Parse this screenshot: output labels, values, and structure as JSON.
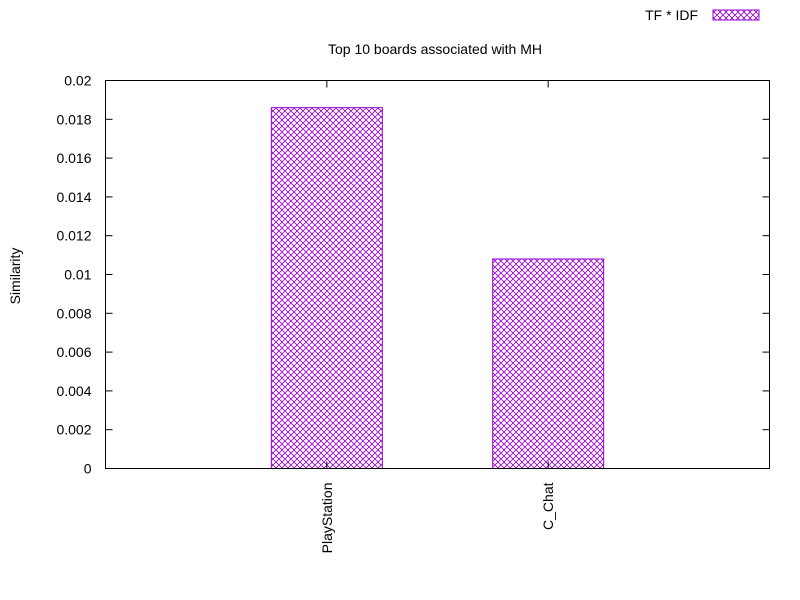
{
  "chart_data": {
    "type": "bar",
    "title": "Top 10 boards associated with MH",
    "xlabel": "",
    "ylabel": "Similarity",
    "ylim": [
      0,
      0.02
    ],
    "yticks": [
      "0",
      "0.002",
      "0.004",
      "0.006",
      "0.008",
      "0.01",
      "0.012",
      "0.014",
      "0.016",
      "0.018",
      "0.02"
    ],
    "categories": [
      "PlayStation",
      "C_Chat"
    ],
    "series": [
      {
        "name": "TF * IDF",
        "values": [
          0.0186,
          0.0108
        ]
      }
    ],
    "legend_position": "top-right",
    "grid": false,
    "colors": {
      "bar": "#9400d3",
      "axis": "#000000"
    }
  }
}
